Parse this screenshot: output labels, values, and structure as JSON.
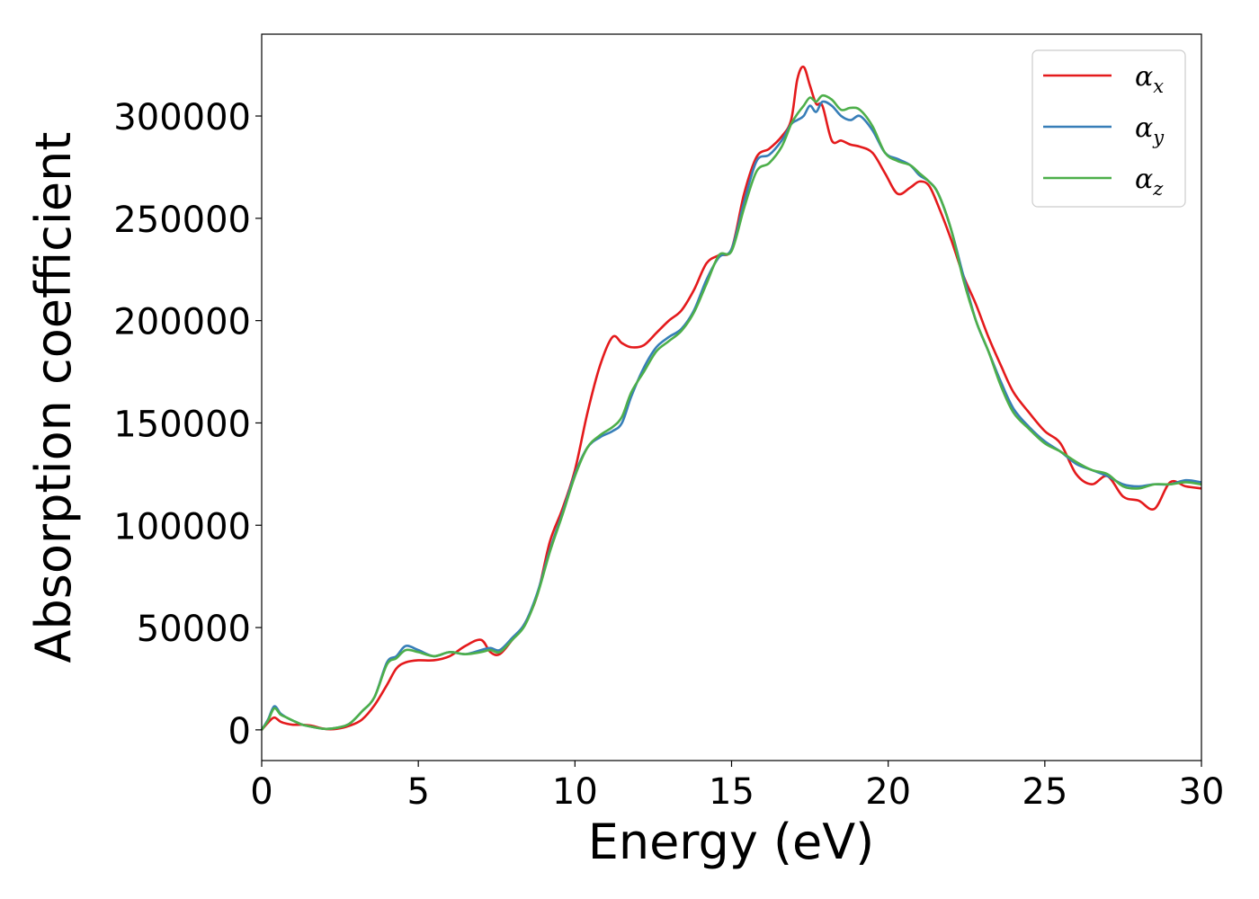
{
  "chart_data": {
    "type": "line",
    "title": "",
    "xlabel": "Energy (eV)",
    "ylabel": "Absorption coefficient",
    "xlim": [
      0,
      30
    ],
    "ylim": [
      -15000,
      340000
    ],
    "xticks": [
      0,
      5,
      10,
      15,
      20,
      25,
      30
    ],
    "xtick_labels": [
      "0",
      "5",
      "10",
      "15",
      "20",
      "25",
      "30"
    ],
    "yticks": [
      0,
      50000,
      100000,
      150000,
      200000,
      250000,
      300000
    ],
    "ytick_labels": [
      "0",
      "50000",
      "100000",
      "150000",
      "200000",
      "250000",
      "300000"
    ],
    "grid": false,
    "legend_position": "top-right",
    "series": [
      {
        "name": "αx",
        "legend_symbol": "α",
        "legend_sub": "x",
        "color": "#e41a1c",
        "x": [
          0,
          0.2,
          0.4,
          0.6,
          0.8,
          1.0,
          1.3,
          1.6,
          2.0,
          2.4,
          2.8,
          3.2,
          3.6,
          4.0,
          4.3,
          4.6,
          5.0,
          5.5,
          6.0,
          6.5,
          7.0,
          7.3,
          7.6,
          8.0,
          8.4,
          8.8,
          9.2,
          9.6,
          10.0,
          10.4,
          10.8,
          11.2,
          11.5,
          11.8,
          12.2,
          12.6,
          13.0,
          13.4,
          13.8,
          14.2,
          14.6,
          15.0,
          15.4,
          15.8,
          16.2,
          16.6,
          16.9,
          17.1,
          17.3,
          17.5,
          17.7,
          17.9,
          18.2,
          18.5,
          18.8,
          19.1,
          19.5,
          19.9,
          20.3,
          20.7,
          21.0,
          21.3,
          21.6,
          22.0,
          22.4,
          22.8,
          23.2,
          23.6,
          24.0,
          24.5,
          25.0,
          25.5,
          26.0,
          26.5,
          27.0,
          27.5,
          28.0,
          28.5,
          29.0,
          29.5,
          30.0
        ],
        "y": [
          0,
          3500,
          6000,
          4000,
          3000,
          2500,
          2500,
          2000,
          500,
          500,
          2000,
          5000,
          12000,
          22000,
          30000,
          33000,
          34000,
          34000,
          36000,
          41000,
          44000,
          38000,
          37000,
          44000,
          52000,
          66000,
          92000,
          108000,
          127000,
          155000,
          178000,
          192000,
          189000,
          187000,
          188000,
          194000,
          200000,
          205000,
          215000,
          228000,
          232000,
          235000,
          262000,
          280000,
          284000,
          290000,
          298000,
          318000,
          324000,
          315000,
          306000,
          305000,
          288000,
          288000,
          286000,
          285000,
          282000,
          272000,
          262000,
          265000,
          268000,
          266000,
          256000,
          240000,
          222000,
          208000,
          192000,
          178000,
          165000,
          155000,
          146000,
          140000,
          125000,
          120000,
          124000,
          114000,
          112000,
          108000,
          121000,
          119000,
          118000
        ]
      },
      {
        "name": "αy",
        "legend_symbol": "α",
        "legend_sub": "y",
        "color": "#377eb8",
        "x": [
          0,
          0.2,
          0.4,
          0.6,
          0.8,
          1.0,
          1.3,
          1.6,
          2.0,
          2.4,
          2.8,
          3.2,
          3.6,
          4.0,
          4.3,
          4.6,
          5.0,
          5.5,
          6.0,
          6.5,
          7.0,
          7.3,
          7.6,
          8.0,
          8.4,
          8.8,
          9.2,
          9.6,
          10.0,
          10.4,
          10.8,
          11.2,
          11.5,
          11.8,
          12.2,
          12.6,
          13.0,
          13.4,
          13.8,
          14.2,
          14.6,
          15.0,
          15.4,
          15.8,
          16.2,
          16.6,
          16.9,
          17.1,
          17.3,
          17.5,
          17.7,
          17.9,
          18.2,
          18.5,
          18.8,
          19.1,
          19.5,
          19.9,
          20.3,
          20.7,
          21.0,
          21.3,
          21.6,
          22.0,
          22.4,
          22.8,
          23.2,
          23.6,
          24.0,
          24.5,
          25.0,
          25.5,
          26.0,
          26.5,
          27.0,
          27.5,
          28.0,
          28.5,
          29.0,
          29.5,
          30.0
        ],
        "y": [
          0,
          5000,
          11500,
          8000,
          6000,
          4500,
          2500,
          1500,
          500,
          1000,
          3000,
          9000,
          16000,
          33000,
          36000,
          41000,
          39000,
          36000,
          38000,
          37000,
          39000,
          40000,
          39000,
          45000,
          52000,
          67000,
          88000,
          106000,
          125000,
          138000,
          143000,
          146000,
          150000,
          163000,
          177000,
          187000,
          192000,
          196000,
          205000,
          220000,
          231000,
          235000,
          258000,
          278000,
          281000,
          288000,
          296000,
          298000,
          300000,
          305000,
          302000,
          307000,
          305000,
          300000,
          298000,
          300000,
          293000,
          282000,
          279000,
          276000,
          271000,
          268000,
          262000,
          245000,
          222000,
          200000,
          185000,
          170000,
          157000,
          148000,
          141000,
          136000,
          130000,
          127000,
          124000,
          120000,
          119000,
          120000,
          120000,
          122000,
          121000
        ]
      },
      {
        "name": "αz",
        "legend_symbol": "α",
        "legend_sub": "z",
        "color": "#4daf4a",
        "x": [
          0,
          0.2,
          0.4,
          0.6,
          0.8,
          1.0,
          1.3,
          1.6,
          2.0,
          2.4,
          2.8,
          3.2,
          3.6,
          4.0,
          4.3,
          4.6,
          5.0,
          5.5,
          6.0,
          6.5,
          7.0,
          7.3,
          7.6,
          8.0,
          8.4,
          8.8,
          9.2,
          9.6,
          10.0,
          10.4,
          10.8,
          11.2,
          11.5,
          11.8,
          12.2,
          12.6,
          13.0,
          13.4,
          13.8,
          14.2,
          14.6,
          15.0,
          15.4,
          15.8,
          16.2,
          16.6,
          16.9,
          17.1,
          17.3,
          17.5,
          17.7,
          17.9,
          18.2,
          18.5,
          18.8,
          19.1,
          19.5,
          19.9,
          20.3,
          20.7,
          21.0,
          21.3,
          21.6,
          22.0,
          22.4,
          22.8,
          23.2,
          23.6,
          24.0,
          24.5,
          25.0,
          25.5,
          26.0,
          26.5,
          27.0,
          27.5,
          28.0,
          28.5,
          29.0,
          29.5,
          30.0
        ],
        "y": [
          0,
          4500,
          10500,
          7500,
          6000,
          4500,
          2500,
          1500,
          500,
          1000,
          3000,
          9000,
          16000,
          32000,
          35000,
          39000,
          38000,
          36000,
          38000,
          37000,
          38000,
          39000,
          38000,
          44000,
          51000,
          66000,
          87000,
          105000,
          124000,
          138000,
          144000,
          148000,
          153000,
          165000,
          175000,
          185000,
          190000,
          195000,
          204000,
          218000,
          232000,
          234000,
          255000,
          273000,
          277000,
          285000,
          296000,
          301000,
          305000,
          309000,
          307000,
          310000,
          308000,
          303000,
          304000,
          303000,
          295000,
          282000,
          278000,
          276000,
          272000,
          268000,
          262000,
          245000,
          220000,
          200000,
          185000,
          168000,
          155000,
          147000,
          140000,
          136000,
          131000,
          127000,
          125000,
          119000,
          118000,
          120000,
          120000,
          121000,
          120000
        ]
      }
    ]
  }
}
